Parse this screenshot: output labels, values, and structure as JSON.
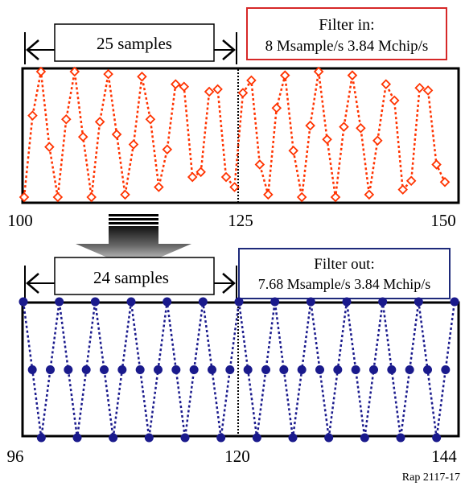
{
  "top_panel": {
    "span_label": "25 samples",
    "filter_title": "Filter in:",
    "filter_detail": "8 Msample/s 3.84 Mchip/s",
    "x_start": "100",
    "x_mid": "125",
    "x_end": "150",
    "color": "#ff3300",
    "box_color": "#d62828",
    "marker": "diamond",
    "x_range": [
      100,
      150
    ],
    "values": [
      0.0,
      0.65,
      1.0,
      0.4,
      0.0,
      0.62,
      1.0,
      0.48,
      0.0,
      0.6,
      0.98,
      0.5,
      0.02,
      0.42,
      0.96,
      0.62,
      0.08,
      0.38,
      0.9,
      0.88,
      0.16,
      0.2,
      0.84,
      0.86,
      0.16,
      0.08,
      0.83,
      0.93,
      0.26,
      0.02,
      0.71,
      0.97,
      0.37,
      0.0,
      0.57,
      1.0,
      0.46,
      0.0,
      0.56,
      0.97,
      0.55,
      0.02,
      0.45,
      0.9,
      0.77,
      0.06,
      0.13,
      0.87,
      0.85,
      0.26,
      0.12
    ]
  },
  "bottom_panel": {
    "span_label": "24 samples",
    "filter_title": "Filter out:",
    "filter_detail": "7.68 Msample/s 3.84 Mchip/s",
    "x_start": "96",
    "x_mid": "120",
    "x_end": "144",
    "color": "#1a1a8c",
    "box_color": "#1e2a7a",
    "marker": "circle",
    "x_range": [
      96,
      144
    ],
    "values": [
      1.0,
      0.5,
      0.0,
      0.5,
      1.0,
      0.5,
      0.0,
      0.5,
      1.0,
      0.5,
      0.0,
      0.5,
      1.0,
      0.5,
      0.0,
      0.5,
      1.0,
      0.5,
      0.0,
      0.5,
      1.0,
      0.5,
      0.0,
      0.5,
      1.0,
      0.5,
      0.0,
      0.5,
      1.0,
      0.5,
      0.0,
      0.5,
      1.0,
      0.5,
      0.0,
      0.5,
      1.0,
      0.5,
      0.0,
      0.5,
      1.0,
      0.5,
      0.0,
      0.5,
      1.0,
      0.5,
      0.0,
      0.5,
      1.0
    ]
  },
  "reference": "Rap 2117-17"
}
